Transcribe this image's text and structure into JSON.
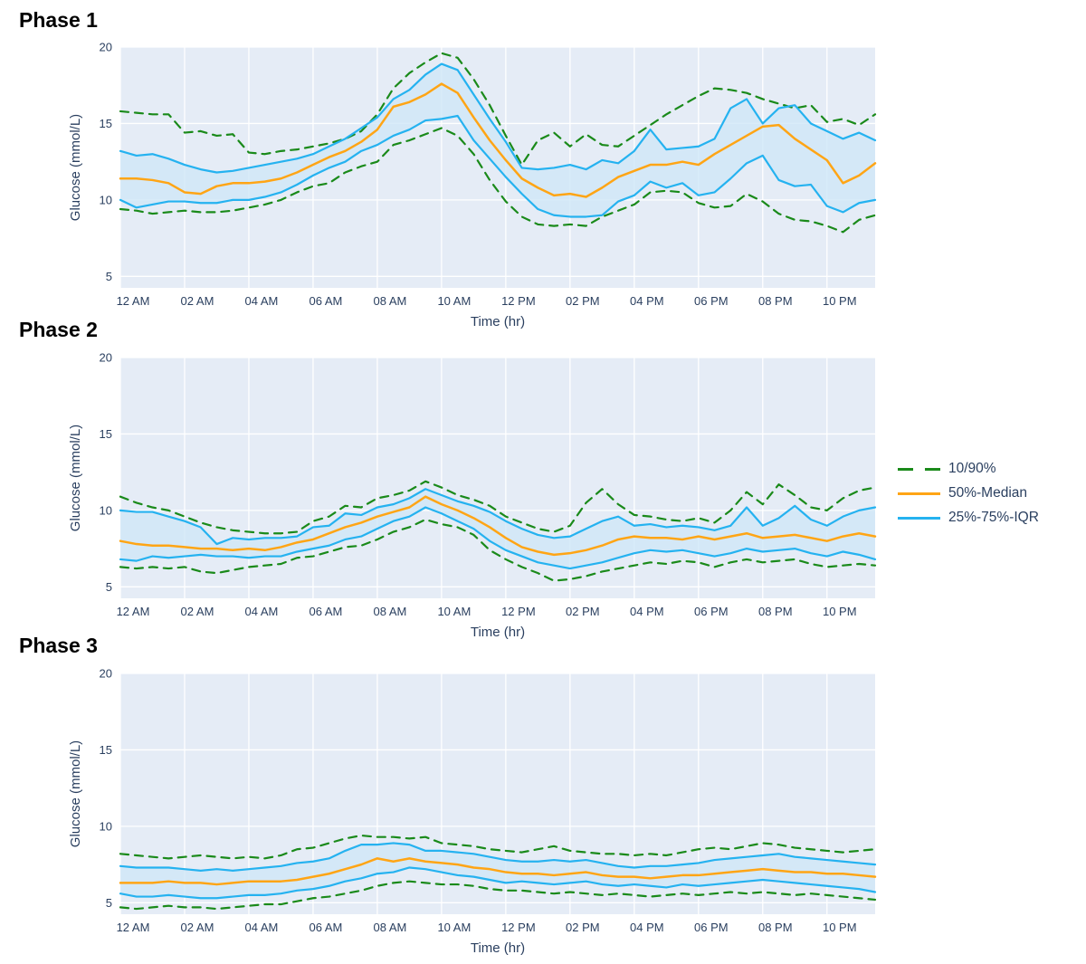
{
  "colors": {
    "figure_bg": "#ffffff",
    "plot_bg": "#e5ecf6",
    "grid": "#ffffff",
    "text": "#2a3f5f",
    "title_text": "#000000",
    "green": "#1a8a1a",
    "orange": "#ffa515",
    "blue": "#25b2f0",
    "band_fill": "#cfe7f8"
  },
  "legend": {
    "items": [
      {
        "label": "10/90%",
        "color": "green",
        "style": "dashed"
      },
      {
        "label": "50%-Median",
        "color": "orange",
        "style": "solid"
      },
      {
        "label": "25%-75%-IQR",
        "color": "blue",
        "style": "solid"
      }
    ]
  },
  "chart_data": [
    {
      "type": "line",
      "title": "Phase 1",
      "xlabel": "Time (hr)",
      "ylabel": "Glucose (mmol/L)",
      "x_start_hour": 0,
      "x_step_hours": 0.5,
      "xlim": [
        0,
        23.5
      ],
      "ylim": [
        4.25,
        20
      ],
      "yticks": [
        5,
        10,
        15,
        20
      ],
      "xtick_hours": [
        0,
        2,
        4,
        6,
        8,
        10,
        12,
        14,
        16,
        18,
        20,
        22
      ],
      "xtick_labels": [
        "12 AM",
        "02 AM",
        "04 AM",
        "06 AM",
        "08 AM",
        "10 AM",
        "12 PM",
        "02 PM",
        "04 PM",
        "06 PM",
        "08 PM",
        "10 PM"
      ],
      "grid": true,
      "band": {
        "upper": "p75",
        "lower": "p25"
      },
      "series": [
        {
          "name": "90%",
          "role": "p90",
          "color": "green",
          "dash": true,
          "values": [
            15.8,
            15.7,
            15.6,
            15.6,
            14.4,
            14.5,
            14.2,
            14.3,
            13.1,
            13.0,
            13.2,
            13.3,
            13.5,
            13.7,
            14.0,
            14.5,
            15.6,
            17.3,
            18.3,
            19.0,
            19.6,
            19.3,
            17.9,
            16.2,
            14.2,
            12.3,
            13.9,
            14.4,
            13.5,
            14.3,
            13.6,
            13.5,
            14.2,
            14.9,
            15.6,
            16.2,
            16.8,
            17.3,
            17.2,
            17.0,
            16.6,
            16.3,
            16.0,
            16.2,
            15.1,
            15.3,
            14.9,
            15.6
          ]
        },
        {
          "name": "10%",
          "role": "p10",
          "color": "green",
          "dash": true,
          "values": [
            9.4,
            9.3,
            9.1,
            9.2,
            9.3,
            9.2,
            9.2,
            9.3,
            9.5,
            9.7,
            10.0,
            10.5,
            10.9,
            11.1,
            11.8,
            12.2,
            12.5,
            13.6,
            13.9,
            14.3,
            14.7,
            14.2,
            13.0,
            11.3,
            9.9,
            8.9,
            8.4,
            8.3,
            8.4,
            8.3,
            8.9,
            9.3,
            9.7,
            10.5,
            10.6,
            10.5,
            9.8,
            9.5,
            9.6,
            10.4,
            9.9,
            9.1,
            8.7,
            8.6,
            8.3,
            7.9,
            8.7,
            9.0
          ]
        },
        {
          "name": "75%",
          "role": "p75",
          "color": "blue",
          "dash": false,
          "values": [
            13.2,
            12.9,
            13.0,
            12.7,
            12.3,
            12.0,
            11.8,
            11.9,
            12.1,
            12.3,
            12.5,
            12.7,
            13.0,
            13.5,
            14.0,
            14.7,
            15.4,
            16.6,
            17.2,
            18.2,
            18.9,
            18.5,
            16.9,
            15.3,
            13.8,
            12.1,
            12.0,
            12.1,
            12.3,
            12.0,
            12.6,
            12.4,
            13.2,
            14.6,
            13.3,
            13.4,
            13.5,
            14.0,
            16.0,
            16.6,
            15.0,
            16.0,
            16.2,
            15.0,
            14.5,
            14.0,
            14.4,
            13.9
          ]
        },
        {
          "name": "25%",
          "role": "p25",
          "color": "blue",
          "dash": false,
          "values": [
            10.0,
            9.5,
            9.7,
            9.9,
            9.9,
            9.8,
            9.8,
            10.0,
            10.0,
            10.2,
            10.5,
            11.0,
            11.6,
            12.1,
            12.5,
            13.2,
            13.6,
            14.2,
            14.6,
            15.2,
            15.3,
            15.5,
            13.9,
            12.7,
            11.5,
            10.4,
            9.4,
            9.0,
            8.9,
            8.9,
            9.0,
            9.9,
            10.3,
            11.2,
            10.8,
            11.1,
            10.3,
            10.5,
            11.4,
            12.4,
            12.9,
            11.3,
            10.9,
            11.0,
            9.6,
            9.2,
            9.8,
            10.0
          ]
        },
        {
          "name": "50%-Median",
          "role": "p50",
          "color": "orange",
          "dash": false,
          "values": [
            11.4,
            11.4,
            11.3,
            11.1,
            10.5,
            10.4,
            10.9,
            11.1,
            11.1,
            11.2,
            11.4,
            11.8,
            12.3,
            12.8,
            13.2,
            13.8,
            14.6,
            16.1,
            16.4,
            16.9,
            17.6,
            17.0,
            15.4,
            13.9,
            12.6,
            11.4,
            10.8,
            10.3,
            10.4,
            10.2,
            10.8,
            11.5,
            11.9,
            12.3,
            12.3,
            12.5,
            12.3,
            13.0,
            13.6,
            14.2,
            14.8,
            14.9,
            14.0,
            13.3,
            12.6,
            11.1,
            11.6,
            12.4
          ]
        }
      ]
    },
    {
      "type": "line",
      "title": "Phase 2",
      "xlabel": "Time (hr)",
      "ylabel": "Glucose (mmol/L)",
      "x_start_hour": 0,
      "x_step_hours": 0.5,
      "xlim": [
        0,
        23.5
      ],
      "ylim": [
        4.25,
        20
      ],
      "yticks": [
        5,
        10,
        15,
        20
      ],
      "xtick_hours": [
        0,
        2,
        4,
        6,
        8,
        10,
        12,
        14,
        16,
        18,
        20,
        22
      ],
      "xtick_labels": [
        "12 AM",
        "02 AM",
        "04 AM",
        "06 AM",
        "08 AM",
        "10 AM",
        "12 PM",
        "02 PM",
        "04 PM",
        "06 PM",
        "08 PM",
        "10 PM"
      ],
      "grid": true,
      "band": {
        "upper": "p75",
        "lower": "p25"
      },
      "series": [
        {
          "name": "90%",
          "role": "p90",
          "color": "green",
          "dash": true,
          "values": [
            10.9,
            10.5,
            10.2,
            10.0,
            9.6,
            9.2,
            8.9,
            8.7,
            8.6,
            8.5,
            8.5,
            8.6,
            9.3,
            9.6,
            10.3,
            10.2,
            10.8,
            11.0,
            11.3,
            11.9,
            11.5,
            11.0,
            10.7,
            10.3,
            9.6,
            9.2,
            8.8,
            8.6,
            9.0,
            10.5,
            11.4,
            10.4,
            9.7,
            9.6,
            9.4,
            9.3,
            9.5,
            9.2,
            10.0,
            11.2,
            10.4,
            11.7,
            11.0,
            10.2,
            10.0,
            10.8,
            11.3,
            11.5
          ]
        },
        {
          "name": "10%",
          "role": "p10",
          "color": "green",
          "dash": true,
          "values": [
            6.3,
            6.2,
            6.3,
            6.2,
            6.3,
            6.0,
            5.9,
            6.1,
            6.3,
            6.4,
            6.5,
            6.9,
            7.0,
            7.3,
            7.6,
            7.7,
            8.1,
            8.6,
            8.9,
            9.4,
            9.1,
            8.9,
            8.4,
            7.4,
            6.8,
            6.3,
            5.9,
            5.4,
            5.5,
            5.7,
            6.0,
            6.2,
            6.4,
            6.6,
            6.5,
            6.7,
            6.6,
            6.3,
            6.6,
            6.8,
            6.6,
            6.7,
            6.8,
            6.5,
            6.3,
            6.4,
            6.5,
            6.4
          ]
        },
        {
          "name": "75%",
          "role": "p75",
          "color": "blue",
          "dash": false,
          "values": [
            10.0,
            9.9,
            9.9,
            9.6,
            9.3,
            8.9,
            7.8,
            8.2,
            8.1,
            8.2,
            8.2,
            8.3,
            8.9,
            9.0,
            9.8,
            9.7,
            10.2,
            10.4,
            10.8,
            11.4,
            11.0,
            10.6,
            10.3,
            9.9,
            9.3,
            8.8,
            8.4,
            8.2,
            8.3,
            8.8,
            9.3,
            9.6,
            9.0,
            9.1,
            8.9,
            9.0,
            8.9,
            8.7,
            9.0,
            10.2,
            9.0,
            9.5,
            10.3,
            9.4,
            9.0,
            9.6,
            10.0,
            10.2
          ]
        },
        {
          "name": "25%",
          "role": "p25",
          "color": "blue",
          "dash": false,
          "values": [
            6.8,
            6.7,
            7.0,
            6.9,
            7.0,
            7.1,
            7.0,
            7.0,
            6.9,
            7.0,
            7.0,
            7.3,
            7.5,
            7.7,
            8.1,
            8.3,
            8.8,
            9.3,
            9.6,
            10.2,
            9.8,
            9.3,
            8.8,
            8.0,
            7.4,
            7.0,
            6.6,
            6.4,
            6.2,
            6.4,
            6.6,
            6.9,
            7.2,
            7.4,
            7.3,
            7.4,
            7.2,
            7.0,
            7.2,
            7.5,
            7.3,
            7.4,
            7.5,
            7.2,
            7.0,
            7.3,
            7.1,
            6.8
          ]
        },
        {
          "name": "50%-Median",
          "role": "p50",
          "color": "orange",
          "dash": false,
          "values": [
            8.0,
            7.8,
            7.7,
            7.7,
            7.6,
            7.5,
            7.5,
            7.4,
            7.5,
            7.4,
            7.6,
            7.9,
            8.1,
            8.5,
            8.9,
            9.2,
            9.6,
            9.9,
            10.2,
            10.9,
            10.4,
            10.0,
            9.5,
            8.9,
            8.2,
            7.6,
            7.3,
            7.1,
            7.2,
            7.4,
            7.7,
            8.1,
            8.3,
            8.2,
            8.2,
            8.1,
            8.3,
            8.1,
            8.3,
            8.5,
            8.2,
            8.3,
            8.4,
            8.2,
            8.0,
            8.3,
            8.5,
            8.3
          ]
        }
      ]
    },
    {
      "type": "line",
      "title": "Phase 3",
      "xlabel": "Time (hr)",
      "ylabel": "Glucose (mmol/L)",
      "x_start_hour": 0,
      "x_step_hours": 0.5,
      "xlim": [
        0,
        23.5
      ],
      "ylim": [
        4.25,
        20
      ],
      "yticks": [
        5,
        10,
        15,
        20
      ],
      "xtick_hours": [
        0,
        2,
        4,
        6,
        8,
        10,
        12,
        14,
        16,
        18,
        20,
        22
      ],
      "xtick_labels": [
        "12 AM",
        "02 AM",
        "04 AM",
        "06 AM",
        "08 AM",
        "10 AM",
        "12 PM",
        "02 PM",
        "04 PM",
        "06 PM",
        "08 PM",
        "10 PM"
      ],
      "grid": true,
      "band": {
        "upper": "p75",
        "lower": "p25"
      },
      "series": [
        {
          "name": "90%",
          "role": "p90",
          "color": "green",
          "dash": true,
          "values": [
            8.2,
            8.1,
            8.0,
            7.9,
            8.0,
            8.1,
            8.0,
            7.9,
            8.0,
            7.9,
            8.1,
            8.5,
            8.6,
            8.9,
            9.2,
            9.4,
            9.3,
            9.3,
            9.2,
            9.3,
            8.9,
            8.8,
            8.7,
            8.5,
            8.4,
            8.3,
            8.5,
            8.7,
            8.4,
            8.3,
            8.2,
            8.2,
            8.1,
            8.2,
            8.1,
            8.3,
            8.5,
            8.6,
            8.5,
            8.7,
            8.9,
            8.8,
            8.6,
            8.5,
            8.4,
            8.3,
            8.4,
            8.5
          ]
        },
        {
          "name": "10%",
          "role": "p10",
          "color": "green",
          "dash": true,
          "values": [
            4.7,
            4.6,
            4.7,
            4.8,
            4.7,
            4.7,
            4.6,
            4.7,
            4.8,
            4.9,
            4.9,
            5.1,
            5.3,
            5.4,
            5.6,
            5.8,
            6.1,
            6.3,
            6.4,
            6.3,
            6.2,
            6.2,
            6.1,
            5.9,
            5.8,
            5.8,
            5.7,
            5.6,
            5.7,
            5.6,
            5.5,
            5.6,
            5.5,
            5.4,
            5.5,
            5.6,
            5.5,
            5.6,
            5.7,
            5.6,
            5.7,
            5.6,
            5.5,
            5.6,
            5.5,
            5.4,
            5.3,
            5.2
          ]
        },
        {
          "name": "75%",
          "role": "p75",
          "color": "blue",
          "dash": false,
          "values": [
            7.4,
            7.3,
            7.3,
            7.3,
            7.2,
            7.1,
            7.2,
            7.1,
            7.2,
            7.3,
            7.4,
            7.6,
            7.7,
            7.9,
            8.4,
            8.8,
            8.8,
            8.9,
            8.8,
            8.4,
            8.4,
            8.3,
            8.2,
            8.0,
            7.8,
            7.7,
            7.7,
            7.8,
            7.7,
            7.8,
            7.6,
            7.4,
            7.3,
            7.4,
            7.4,
            7.5,
            7.6,
            7.8,
            7.9,
            8.0,
            8.1,
            8.2,
            8.0,
            7.9,
            7.8,
            7.7,
            7.6,
            7.5
          ]
        },
        {
          "name": "25%",
          "role": "p25",
          "color": "blue",
          "dash": false,
          "values": [
            5.6,
            5.4,
            5.4,
            5.5,
            5.4,
            5.3,
            5.3,
            5.4,
            5.5,
            5.5,
            5.6,
            5.8,
            5.9,
            6.1,
            6.4,
            6.6,
            6.9,
            7.0,
            7.3,
            7.2,
            7.0,
            6.8,
            6.7,
            6.5,
            6.3,
            6.4,
            6.3,
            6.2,
            6.3,
            6.4,
            6.2,
            6.1,
            6.2,
            6.1,
            6.0,
            6.2,
            6.1,
            6.2,
            6.3,
            6.4,
            6.5,
            6.4,
            6.3,
            6.2,
            6.1,
            6.0,
            5.9,
            5.7
          ]
        },
        {
          "name": "50%-Median",
          "role": "p50",
          "color": "orange",
          "dash": false,
          "values": [
            6.3,
            6.3,
            6.3,
            6.4,
            6.3,
            6.3,
            6.2,
            6.3,
            6.4,
            6.4,
            6.4,
            6.5,
            6.7,
            6.9,
            7.2,
            7.5,
            7.9,
            7.7,
            7.9,
            7.7,
            7.6,
            7.5,
            7.3,
            7.2,
            7.0,
            6.9,
            6.9,
            6.8,
            6.9,
            7.0,
            6.8,
            6.7,
            6.7,
            6.6,
            6.7,
            6.8,
            6.8,
            6.9,
            7.0,
            7.1,
            7.2,
            7.1,
            7.0,
            7.0,
            6.9,
            6.9,
            6.8,
            6.7
          ]
        }
      ]
    }
  ]
}
